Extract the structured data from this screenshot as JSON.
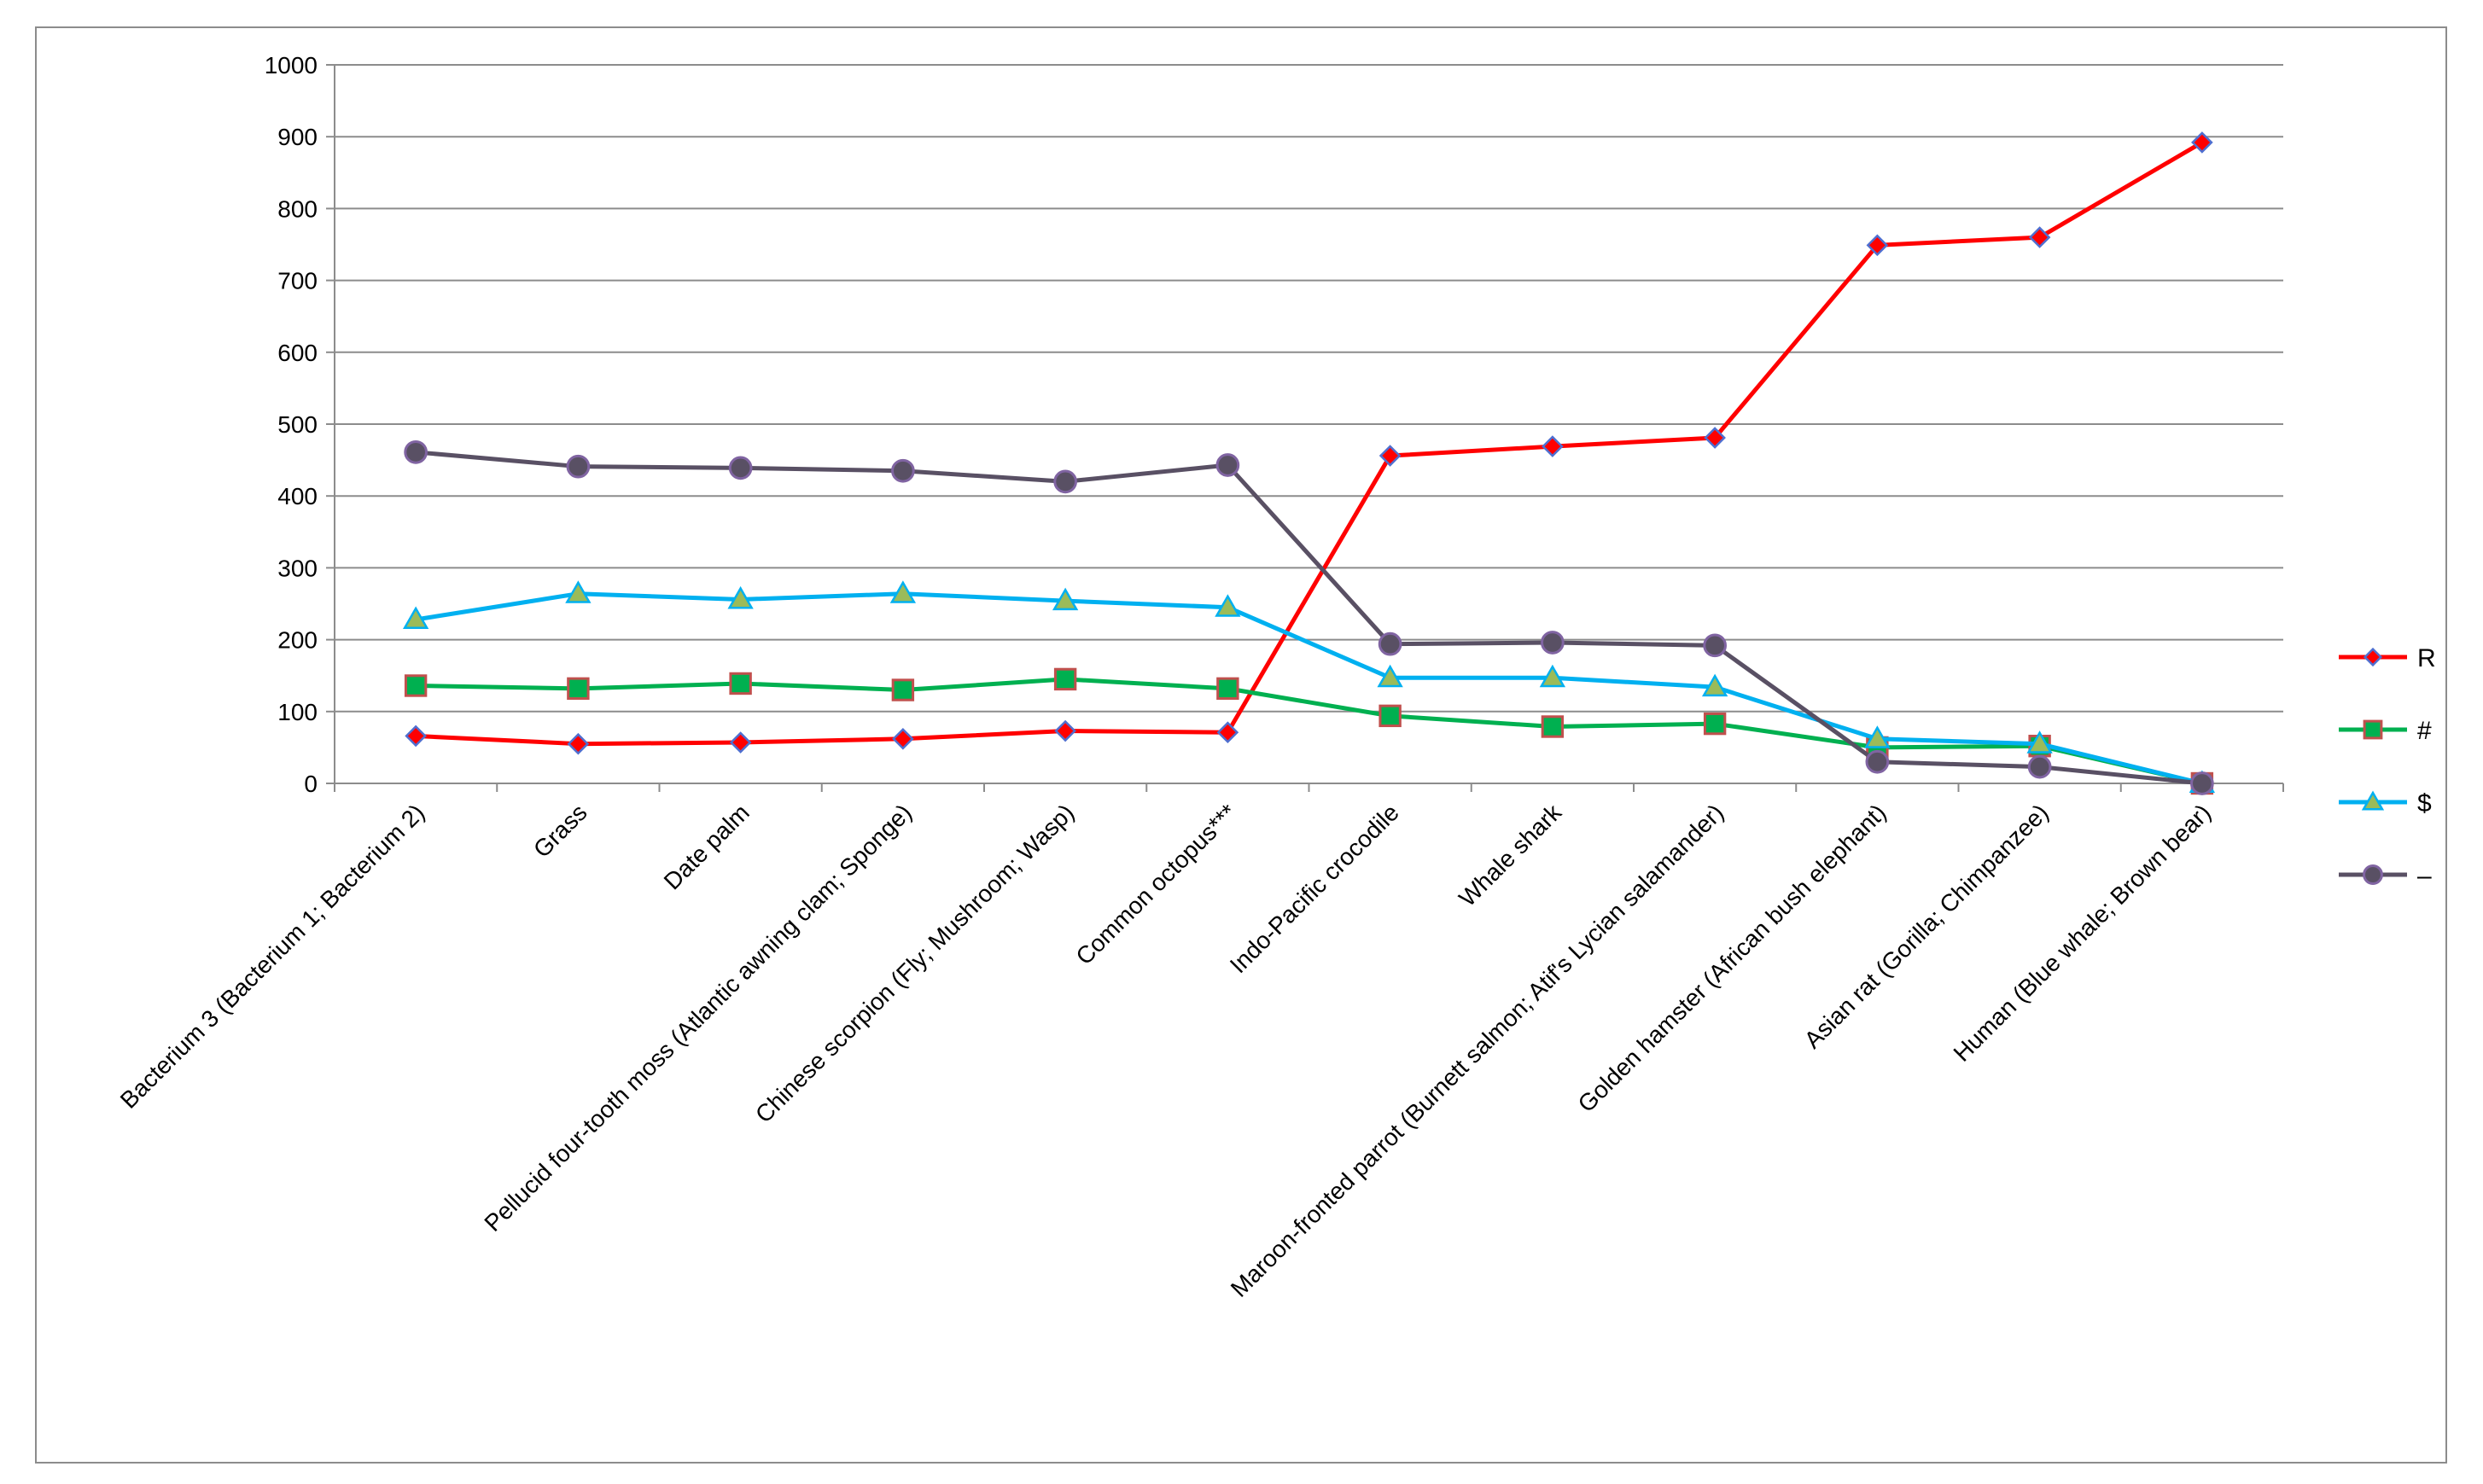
{
  "chart_data": {
    "type": "line",
    "title": "",
    "xlabel": "",
    "ylabel": "",
    "ylim": [
      0,
      1000
    ],
    "yticks": [
      0,
      100,
      200,
      300,
      400,
      500,
      600,
      700,
      800,
      900,
      1000
    ],
    "grid": true,
    "legend_position": "right",
    "categories": [
      "Bacterium 3 (Bacterium 1; Bacterium 2)",
      "Grass",
      "Date palm",
      "Pellucid four-tooth moss (Atlantic awning clam; Sponge)",
      "Chinese scorpion (Fly; Mushroom; Wasp)",
      "Common octopus***",
      "Indo-Pacific crocodile",
      "Whale shark",
      "Maroon-fronted parrot (Burnett salmon; Atif's Lycian salamander)",
      "Golden hamster (African bush elephant)",
      "Asian rat  (Gorilla; Chimpanzee)",
      "Human (Blue whale; Brown bear)"
    ],
    "series": [
      {
        "name": "R",
        "color": "#ff0000",
        "marker": "diamond",
        "marker_fill": "#ff0000",
        "marker_stroke": "#4f6fd0",
        "values": [
          66,
          55,
          57,
          62,
          73,
          71,
          456,
          469,
          481,
          749,
          760,
          892
        ]
      },
      {
        "name": "#",
        "color": "#00b050",
        "marker": "square",
        "marker_fill": "#00b050",
        "marker_stroke": "#c0504d",
        "values": [
          136,
          132,
          139,
          130,
          145,
          132,
          94,
          79,
          83,
          50,
          52,
          0
        ]
      },
      {
        "name": "$",
        "color": "#00b0f0",
        "marker": "triangle",
        "marker_fill": "#9bbb59",
        "marker_stroke": "#00b0f0",
        "values": [
          228,
          264,
          256,
          264,
          254,
          245,
          147,
          147,
          134,
          62,
          55,
          0
        ]
      },
      {
        "name": "–",
        "color": "#595064",
        "marker": "circle",
        "marker_fill": "#595064",
        "marker_stroke": "#8064a2",
        "values": [
          461,
          441,
          439,
          435,
          420,
          443,
          194,
          196,
          192,
          30,
          23,
          0
        ]
      }
    ]
  }
}
